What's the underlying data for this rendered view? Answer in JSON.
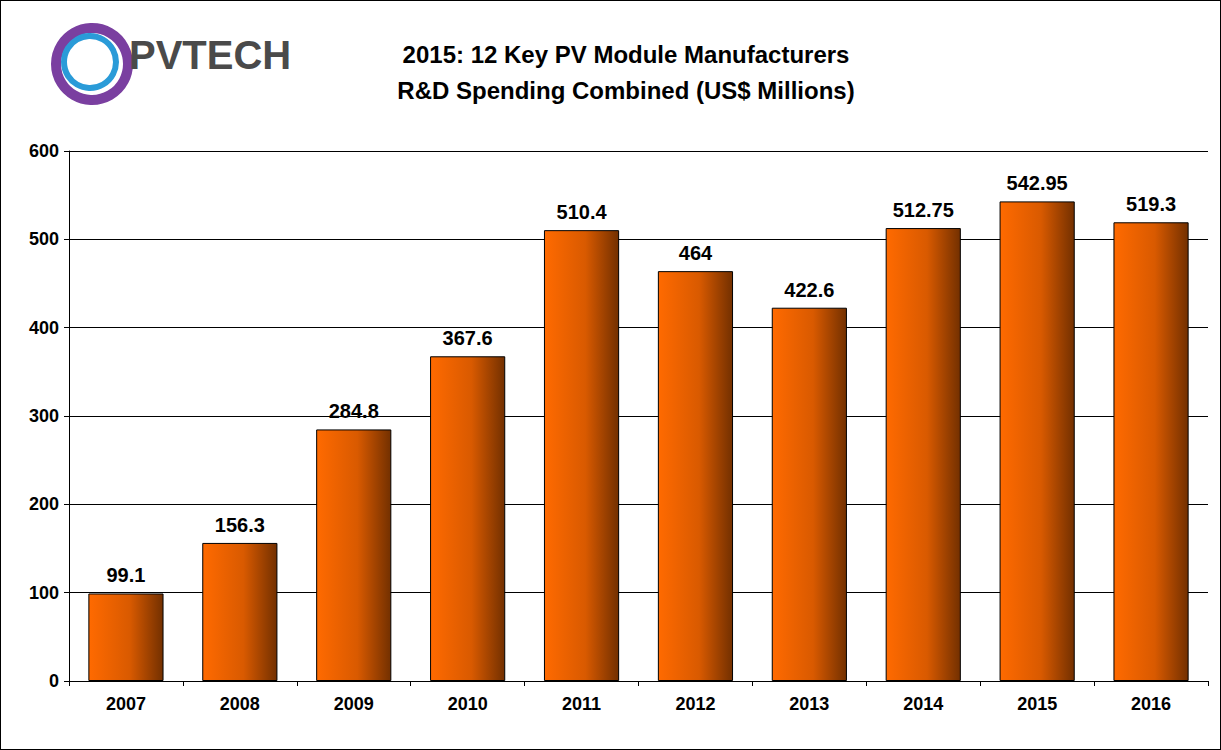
{
  "chart_data": {
    "type": "bar",
    "title": "2015: 12 Key PV Module Manufacturers\nR&D Spending Combined (US$ Millions)",
    "annotations": [
      "PVTECH"
    ],
    "categories": [
      "2007",
      "2008",
      "2009",
      "2010",
      "2011",
      "2012",
      "2013",
      "2014",
      "2015",
      "2016"
    ],
    "values": [
      99.1,
      156.3,
      284.8,
      367.6,
      510.4,
      464,
      422.6,
      512.75,
      542.95,
      519.3
    ],
    "color": "#ff6a00",
    "ylim": [
      0,
      600
    ],
    "yticks": [
      0,
      100,
      200,
      300,
      400,
      500,
      600
    ],
    "grid": true,
    "data_labels": true
  }
}
